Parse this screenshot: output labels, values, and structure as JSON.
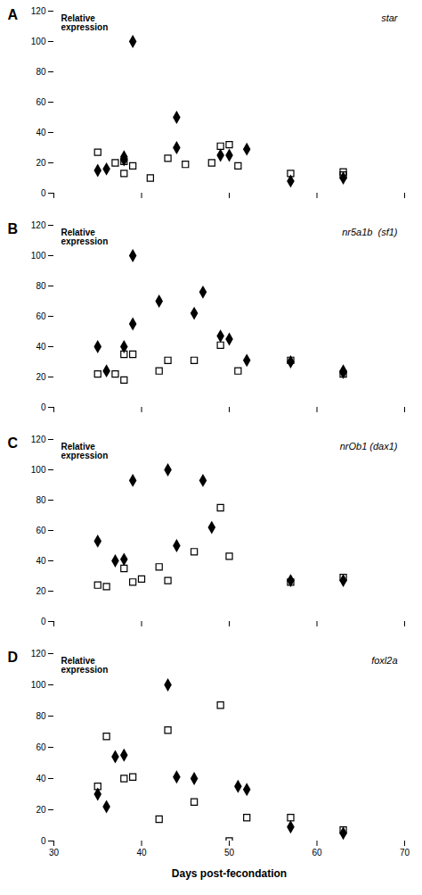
{
  "chart_data": [
    {
      "type": "scatter",
      "annotations": [
        "A",
        "Relative\nexpression",
        "star"
      ],
      "xlim": [
        30,
        70
      ],
      "xticks": [
        30,
        40,
        50,
        60,
        70
      ],
      "ylim": [
        0,
        120
      ],
      "yticks": [
        0,
        20,
        40,
        60,
        80,
        100,
        120
      ],
      "tick_labels": "y",
      "series": [
        {
          "marker": "diamond",
          "color": "#000000",
          "x": [
            35,
            36,
            38,
            38,
            39,
            44,
            44,
            49,
            50,
            52,
            57,
            63
          ],
          "values": [
            15,
            16,
            22,
            24,
            100,
            30,
            50,
            25,
            25,
            29,
            8,
            10
          ]
        },
        {
          "marker": "square_open",
          "color": "#000000",
          "x": [
            35,
            37,
            38,
            38,
            39,
            41,
            43,
            45,
            48,
            49,
            50,
            51,
            57,
            63,
            63
          ],
          "values": [
            27,
            20,
            13,
            21,
            18,
            10,
            23,
            19,
            20,
            31,
            32,
            18,
            13,
            14,
            12
          ]
        }
      ]
    },
    {
      "type": "scatter",
      "annotations": [
        "B",
        "Relative\nexpression",
        "nr5a1b  (sf1)"
      ],
      "xlim": [
        30,
        70
      ],
      "xticks": [
        30,
        40,
        50,
        60,
        70
      ],
      "ylim": [
        0,
        120
      ],
      "yticks": [
        0,
        20,
        40,
        60,
        80,
        100,
        120
      ],
      "tick_labels": "y",
      "series": [
        {
          "marker": "diamond",
          "color": "#000000",
          "x": [
            35,
            36,
            38,
            39,
            39,
            42,
            46,
            47,
            49,
            50,
            52,
            57,
            63,
            63
          ],
          "values": [
            40,
            24,
            40,
            55,
            100,
            70,
            62,
            76,
            47,
            45,
            31,
            30,
            24,
            23
          ]
        },
        {
          "marker": "square_open",
          "color": "#000000",
          "x": [
            35,
            37,
            38,
            38,
            39,
            42,
            43,
            46,
            49,
            51,
            57,
            63
          ],
          "values": [
            22,
            22,
            35,
            18,
            35,
            24,
            31,
            31,
            41,
            24,
            31,
            22
          ]
        }
      ]
    },
    {
      "type": "scatter",
      "annotations": [
        "C",
        "Relative\nexpression",
        "nrOb1 (dax1)"
      ],
      "xlim": [
        30,
        70
      ],
      "xticks": [
        30,
        40,
        50,
        60,
        70
      ],
      "ylim": [
        0,
        120
      ],
      "yticks": [
        0,
        20,
        40,
        60,
        80,
        100,
        120
      ],
      "tick_labels": "y",
      "series": [
        {
          "marker": "diamond",
          "color": "#000000",
          "x": [
            35,
            37,
            38,
            39,
            43,
            44,
            47,
            48,
            57,
            63
          ],
          "values": [
            53,
            40,
            41,
            93,
            100,
            50,
            93,
            62,
            27,
            27
          ]
        },
        {
          "marker": "square_open",
          "color": "#000000",
          "x": [
            35,
            36,
            38,
            39,
            40,
            42,
            43,
            46,
            49,
            50,
            57,
            63
          ],
          "values": [
            24,
            23,
            35,
            26,
            28,
            36,
            27,
            46,
            75,
            43,
            26,
            29
          ]
        }
      ]
    },
    {
      "type": "scatter",
      "annotations": [
        "D",
        "Relative\nexpression",
        "foxl2a"
      ],
      "xlabel": "Days post-fecondation",
      "xlim": [
        30,
        70
      ],
      "xticks": [
        30,
        40,
        50,
        60,
        70
      ],
      "ylim": [
        0,
        120
      ],
      "yticks": [
        0,
        20,
        40,
        60,
        80,
        100,
        120
      ],
      "series": [
        {
          "marker": "diamond",
          "color": "#000000",
          "x": [
            35,
            36,
            37,
            38,
            43,
            44,
            46,
            51,
            52,
            57,
            63
          ],
          "values": [
            30,
            22,
            54,
            55,
            100,
            41,
            40,
            35,
            33,
            9,
            5
          ]
        },
        {
          "marker": "square_open",
          "color": "#000000",
          "x": [
            35,
            36,
            38,
            39,
            42,
            43,
            46,
            49,
            50,
            52,
            57,
            63
          ],
          "values": [
            35,
            67,
            40,
            41,
            14,
            71,
            25,
            87,
            0,
            15,
            15,
            7
          ]
        }
      ]
    }
  ]
}
